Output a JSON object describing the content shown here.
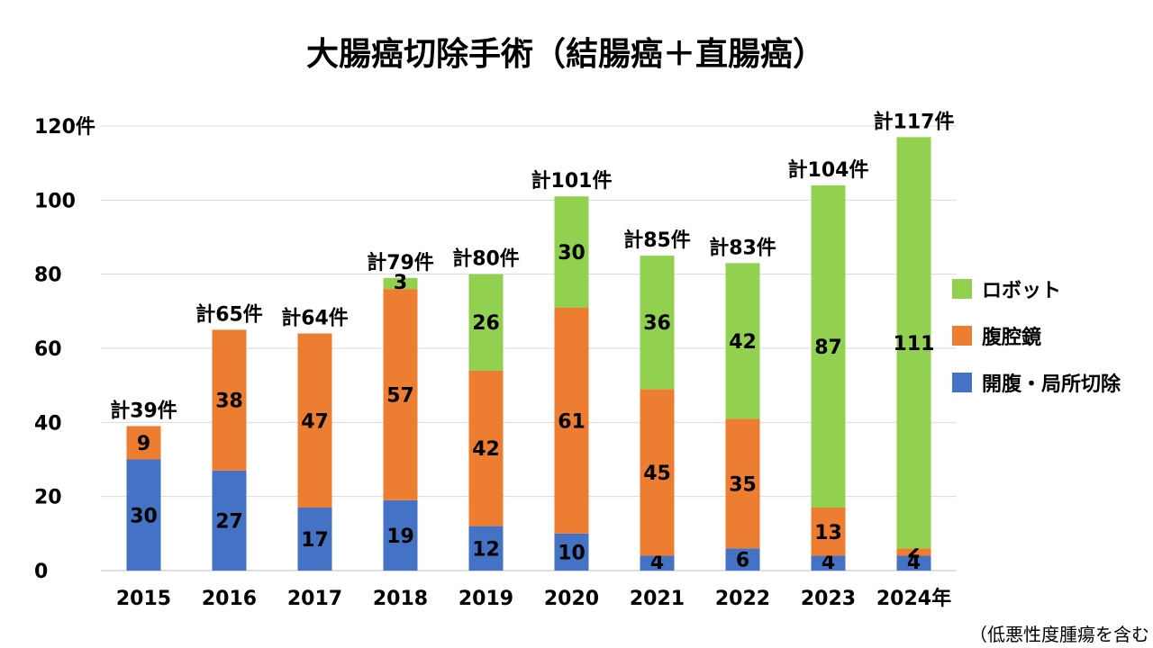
{
  "chart_data": {
    "type": "bar",
    "stacked": true,
    "title": "大腸癌切除手術（結腸癌＋直腸癌）",
    "categories": [
      "2015",
      "2016",
      "2017",
      "2018",
      "2019",
      "2020",
      "2021",
      "2022",
      "2023",
      "2024"
    ],
    "x_unit_suffix": "年",
    "y_ticks": [
      "0",
      "20",
      "40",
      "60",
      "80",
      "100",
      "120件"
    ],
    "ylim": [
      0,
      120
    ],
    "grid": true,
    "legend_position": "right",
    "series": [
      {
        "name": "開腹・局所切除",
        "color": "#4472C4",
        "values": [
          30,
          27,
          17,
          19,
          12,
          10,
          4,
          6,
          4,
          4
        ]
      },
      {
        "name": "腹腔鏡",
        "color": "#ED7D31",
        "values": [
          9,
          38,
          47,
          57,
          42,
          61,
          45,
          35,
          13,
          2
        ]
      },
      {
        "name": "ロボット",
        "color": "#92D050",
        "values": [
          0,
          0,
          0,
          3,
          26,
          30,
          36,
          42,
          87,
          111
        ]
      }
    ],
    "totals": [
      "計39件",
      "計65件",
      "計64件",
      "計79件",
      "計80件",
      "計101件",
      "計85件",
      "計83件",
      "計104件",
      "計117件"
    ],
    "note": "（低悪性度腫瘍を含む"
  }
}
